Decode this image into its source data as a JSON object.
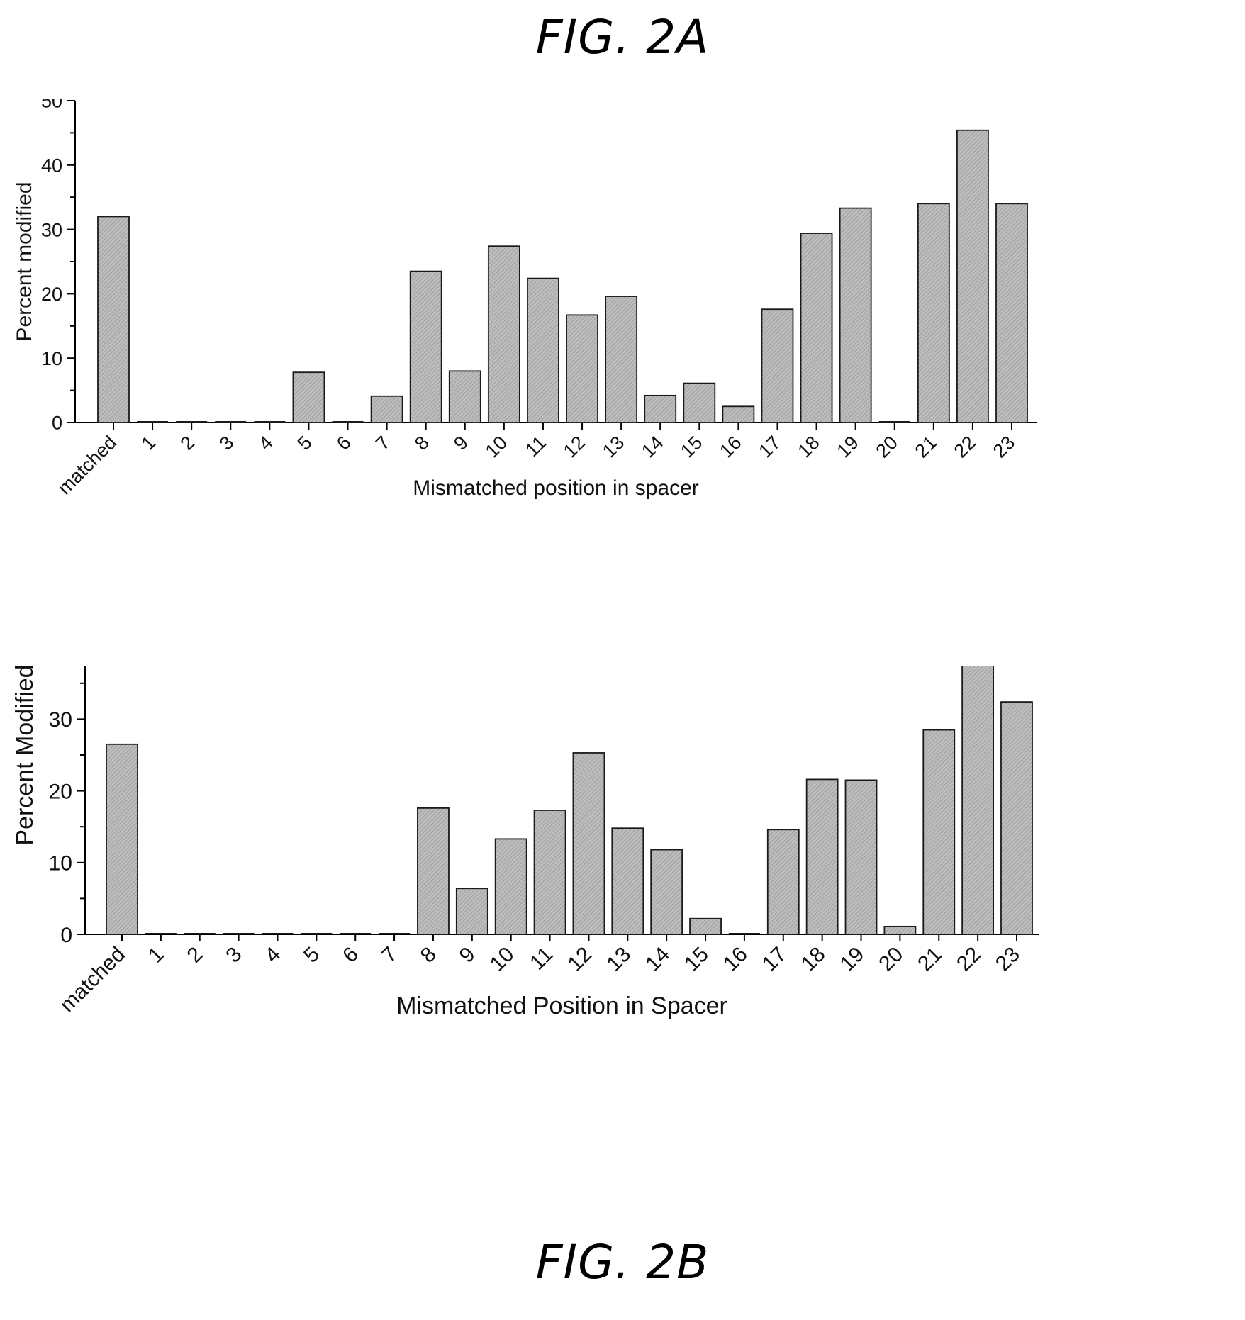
{
  "figures": {
    "top_label": "FIG. 2A",
    "bottom_label": "FIG. 2B"
  },
  "colors": {
    "bar_fill": "#bdbdbd",
    "bar_stroke": "#1a1a1a",
    "axis": "#000000"
  },
  "chart_data": [
    {
      "type": "bar",
      "categories": [
        "matched",
        "1",
        "2",
        "3",
        "4",
        "5",
        "6",
        "7",
        "8",
        "9",
        "10",
        "11",
        "12",
        "13",
        "14",
        "15",
        "16",
        "17",
        "18",
        "19",
        "20",
        "21",
        "22",
        "23"
      ],
      "values": [
        32,
        0,
        0,
        0,
        0,
        7.8,
        0,
        4.1,
        23.5,
        8,
        27.4,
        22.4,
        16.7,
        19.6,
        4.2,
        6.1,
        2.5,
        17.6,
        29.4,
        33.3,
        0,
        34,
        45.4,
        34
      ],
      "xlabel": "Mismatched position in spacer",
      "ylabel": "Percent  modified",
      "ylim": [
        0,
        50
      ],
      "yticks": [
        0,
        10,
        20,
        30,
        40,
        50
      ],
      "grid": false
    },
    {
      "type": "bar",
      "categories": [
        "matched",
        "1",
        "2",
        "3",
        "4",
        "5",
        "6",
        "7",
        "8",
        "9",
        "10",
        "11",
        "12",
        "13",
        "14",
        "15",
        "16",
        "17",
        "18",
        "19",
        "20",
        "21",
        "22",
        "23"
      ],
      "values": [
        26.5,
        0,
        0,
        0,
        0,
        0,
        0,
        0,
        17.6,
        6.4,
        13.3,
        17.3,
        25.3,
        14.8,
        11.8,
        2.2,
        0,
        14.6,
        21.6,
        21.5,
        1.1,
        28.5,
        37.6,
        32.4
      ],
      "xlabel": "Mismatched Position in Spacer",
      "ylabel": "Percent  Modified",
      "ylim": [
        0,
        50
      ],
      "yticks": [
        0,
        10,
        20,
        30,
        40,
        50
      ],
      "grid": false
    }
  ]
}
